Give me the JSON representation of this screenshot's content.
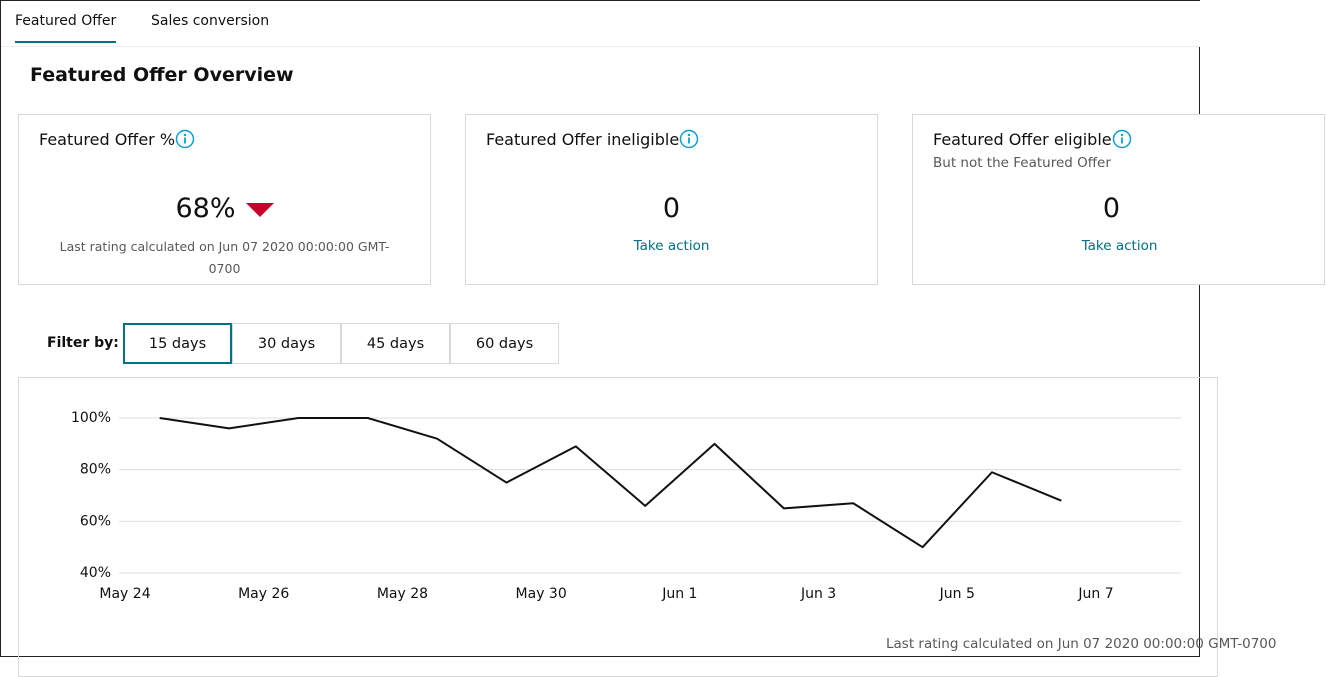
{
  "tabs": {
    "items": [
      "Featured Offer",
      "Sales conversion"
    ],
    "active": 0
  },
  "heading": "Featured Offer Overview",
  "cards": [
    {
      "title": "Featured Offer %",
      "value": "68%",
      "note": "Last rating calculated on Jun 07 2020 00:00:00 GMT-0700"
    },
    {
      "title": "Featured Offer ineligible",
      "value": "0",
      "link": "Take action"
    },
    {
      "title": "Featured Offer eligible",
      "subtitle": "But not the Featured Offer",
      "value": "0",
      "link": "Take action"
    }
  ],
  "filter": {
    "label": "Filter by:",
    "options": [
      "15 days",
      "30 days",
      "45 days",
      "60 days"
    ],
    "selected": 0
  },
  "chart_data": {
    "type": "line",
    "x": [
      "May 24",
      "May 25",
      "May 26",
      "May 27",
      "May 28",
      "May 29",
      "May 30",
      "May 31",
      "Jun 1",
      "Jun 2",
      "Jun 3",
      "Jun 4",
      "Jun 5",
      "Jun 6"
    ],
    "values": [
      100,
      96,
      100,
      100,
      92,
      75,
      89,
      66,
      90,
      65,
      67,
      50,
      79,
      68
    ],
    "color": "#111111",
    "xlim": [
      "May 24",
      "Jun 7"
    ],
    "xticks": [
      "May 24",
      "May 26",
      "May 28",
      "May 30",
      "Jun 1",
      "Jun 3",
      "Jun 5",
      "Jun 7"
    ],
    "ylim": [
      40,
      100
    ],
    "yticks": [
      {
        "value": 40,
        "label": "40%"
      },
      {
        "value": 60,
        "label": "60%"
      },
      {
        "value": 80,
        "label": "80%"
      },
      {
        "value": 100,
        "label": "100%"
      }
    ],
    "grid": true,
    "footnote": "Last rating calculated on Jun 07 2020 00:00:00 GMT-0700"
  }
}
